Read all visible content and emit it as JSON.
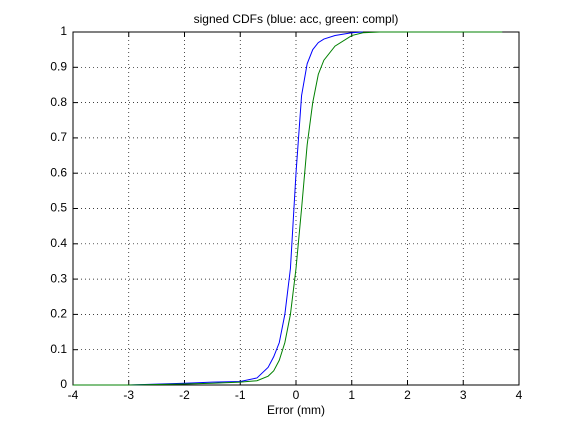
{
  "chart_data": {
    "type": "line",
    "title": "signed CDFs (blue: acc, green: compl)",
    "x_label": "Error (mm)",
    "x": [
      -4,
      -3,
      -2,
      -1.5,
      -1,
      -0.7,
      -0.5,
      -0.4,
      -0.3,
      -0.2,
      -0.1,
      0,
      0.1,
      0.2,
      0.3,
      0.4,
      0.5,
      0.7,
      1,
      1.2,
      1.5,
      2,
      3,
      3.7
    ],
    "series": [
      {
        "color": "#0000ff",
        "values": [
          0,
          0,
          0.005,
          0.008,
          0.01,
          0.02,
          0.05,
          0.08,
          0.12,
          0.2,
          0.33,
          0.6,
          0.82,
          0.91,
          0.95,
          0.97,
          0.98,
          0.99,
          0.998,
          1,
          null,
          null,
          null,
          null
        ]
      },
      {
        "color": "#008000",
        "values": [
          0,
          0,
          0.003,
          0.005,
          0.008,
          0.012,
          0.025,
          0.04,
          0.07,
          0.12,
          0.2,
          0.33,
          0.5,
          0.68,
          0.8,
          0.88,
          0.92,
          0.96,
          0.99,
          0.998,
          1,
          1,
          1,
          1
        ]
      }
    ],
    "xlim": [
      -4,
      4
    ],
    "xticks": [
      -4,
      -3,
      -2,
      -1,
      0,
      1,
      2,
      3,
      4
    ],
    "ylim": [
      0,
      1
    ],
    "yticks": [
      0,
      0.1,
      0.2,
      0.3,
      0.4,
      0.5,
      0.6,
      0.7,
      0.8,
      0.9,
      1
    ],
    "grid": true
  }
}
